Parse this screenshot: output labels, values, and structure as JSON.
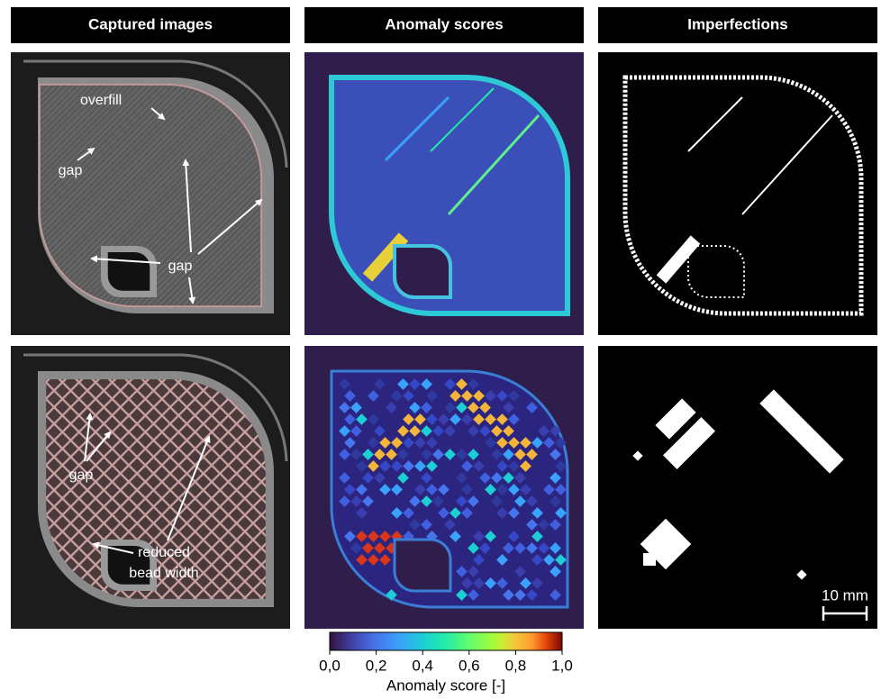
{
  "headers": [
    "Captured images",
    "Anomaly scores",
    "Imperfections"
  ],
  "annotations": [
    "overfill",
    "gap",
    "gap",
    "gap",
    "reduced",
    "bead width"
  ],
  "scale_bar": "10 mm",
  "colorbar": {
    "label": "Anomaly score [-]",
    "lim": [
      0,
      1
    ],
    "ticks": [
      {
        "value": 0,
        "label": "0,0"
      },
      {
        "value": 0.2,
        "label": "0,2"
      },
      {
        "value": 0.4,
        "label": "0,4"
      },
      {
        "value": 0.6,
        "label": "0,6"
      },
      {
        "value": 0.8,
        "label": "0,8"
      },
      {
        "value": 1,
        "label": "1,0"
      }
    ]
  }
}
